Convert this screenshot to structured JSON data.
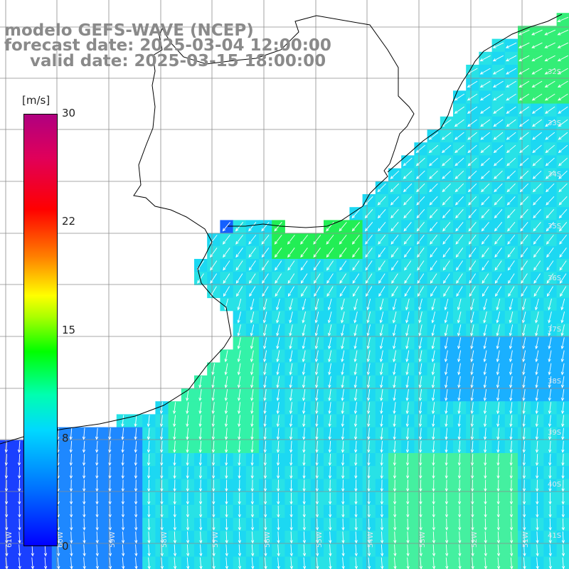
{
  "title": {
    "line1": "modelo GEFS-WAVE (NCEP)",
    "line2": "forecast date: 2025-03-04 12:00:00",
    "line3": "valid date: 2025-03-15 18:00:00"
  },
  "colorbar": {
    "units": "[m/s]",
    "ticks": [
      "30",
      "22",
      "15",
      "8",
      "0"
    ],
    "colors": [
      "#0000ff",
      "#00d8ff",
      "#00ff00",
      "#ffff00",
      "#ff0000",
      "#b00080"
    ]
  },
  "lat_labels": [
    "32S",
    "33S",
    "34S",
    "35S",
    "36S",
    "37S",
    "38S",
    "39S",
    "40S",
    "41S"
  ],
  "lon_labels": [
    "61W",
    "60W",
    "59W",
    "58W",
    "57W",
    "56W",
    "55W",
    "54W",
    "53W",
    "52W",
    "51W"
  ],
  "colors": {
    "land": "#ffffff",
    "grid": "#8c8c8c",
    "coast": "#000000",
    "arrow": "#ffffff",
    "label": "#8a8a8a"
  }
}
